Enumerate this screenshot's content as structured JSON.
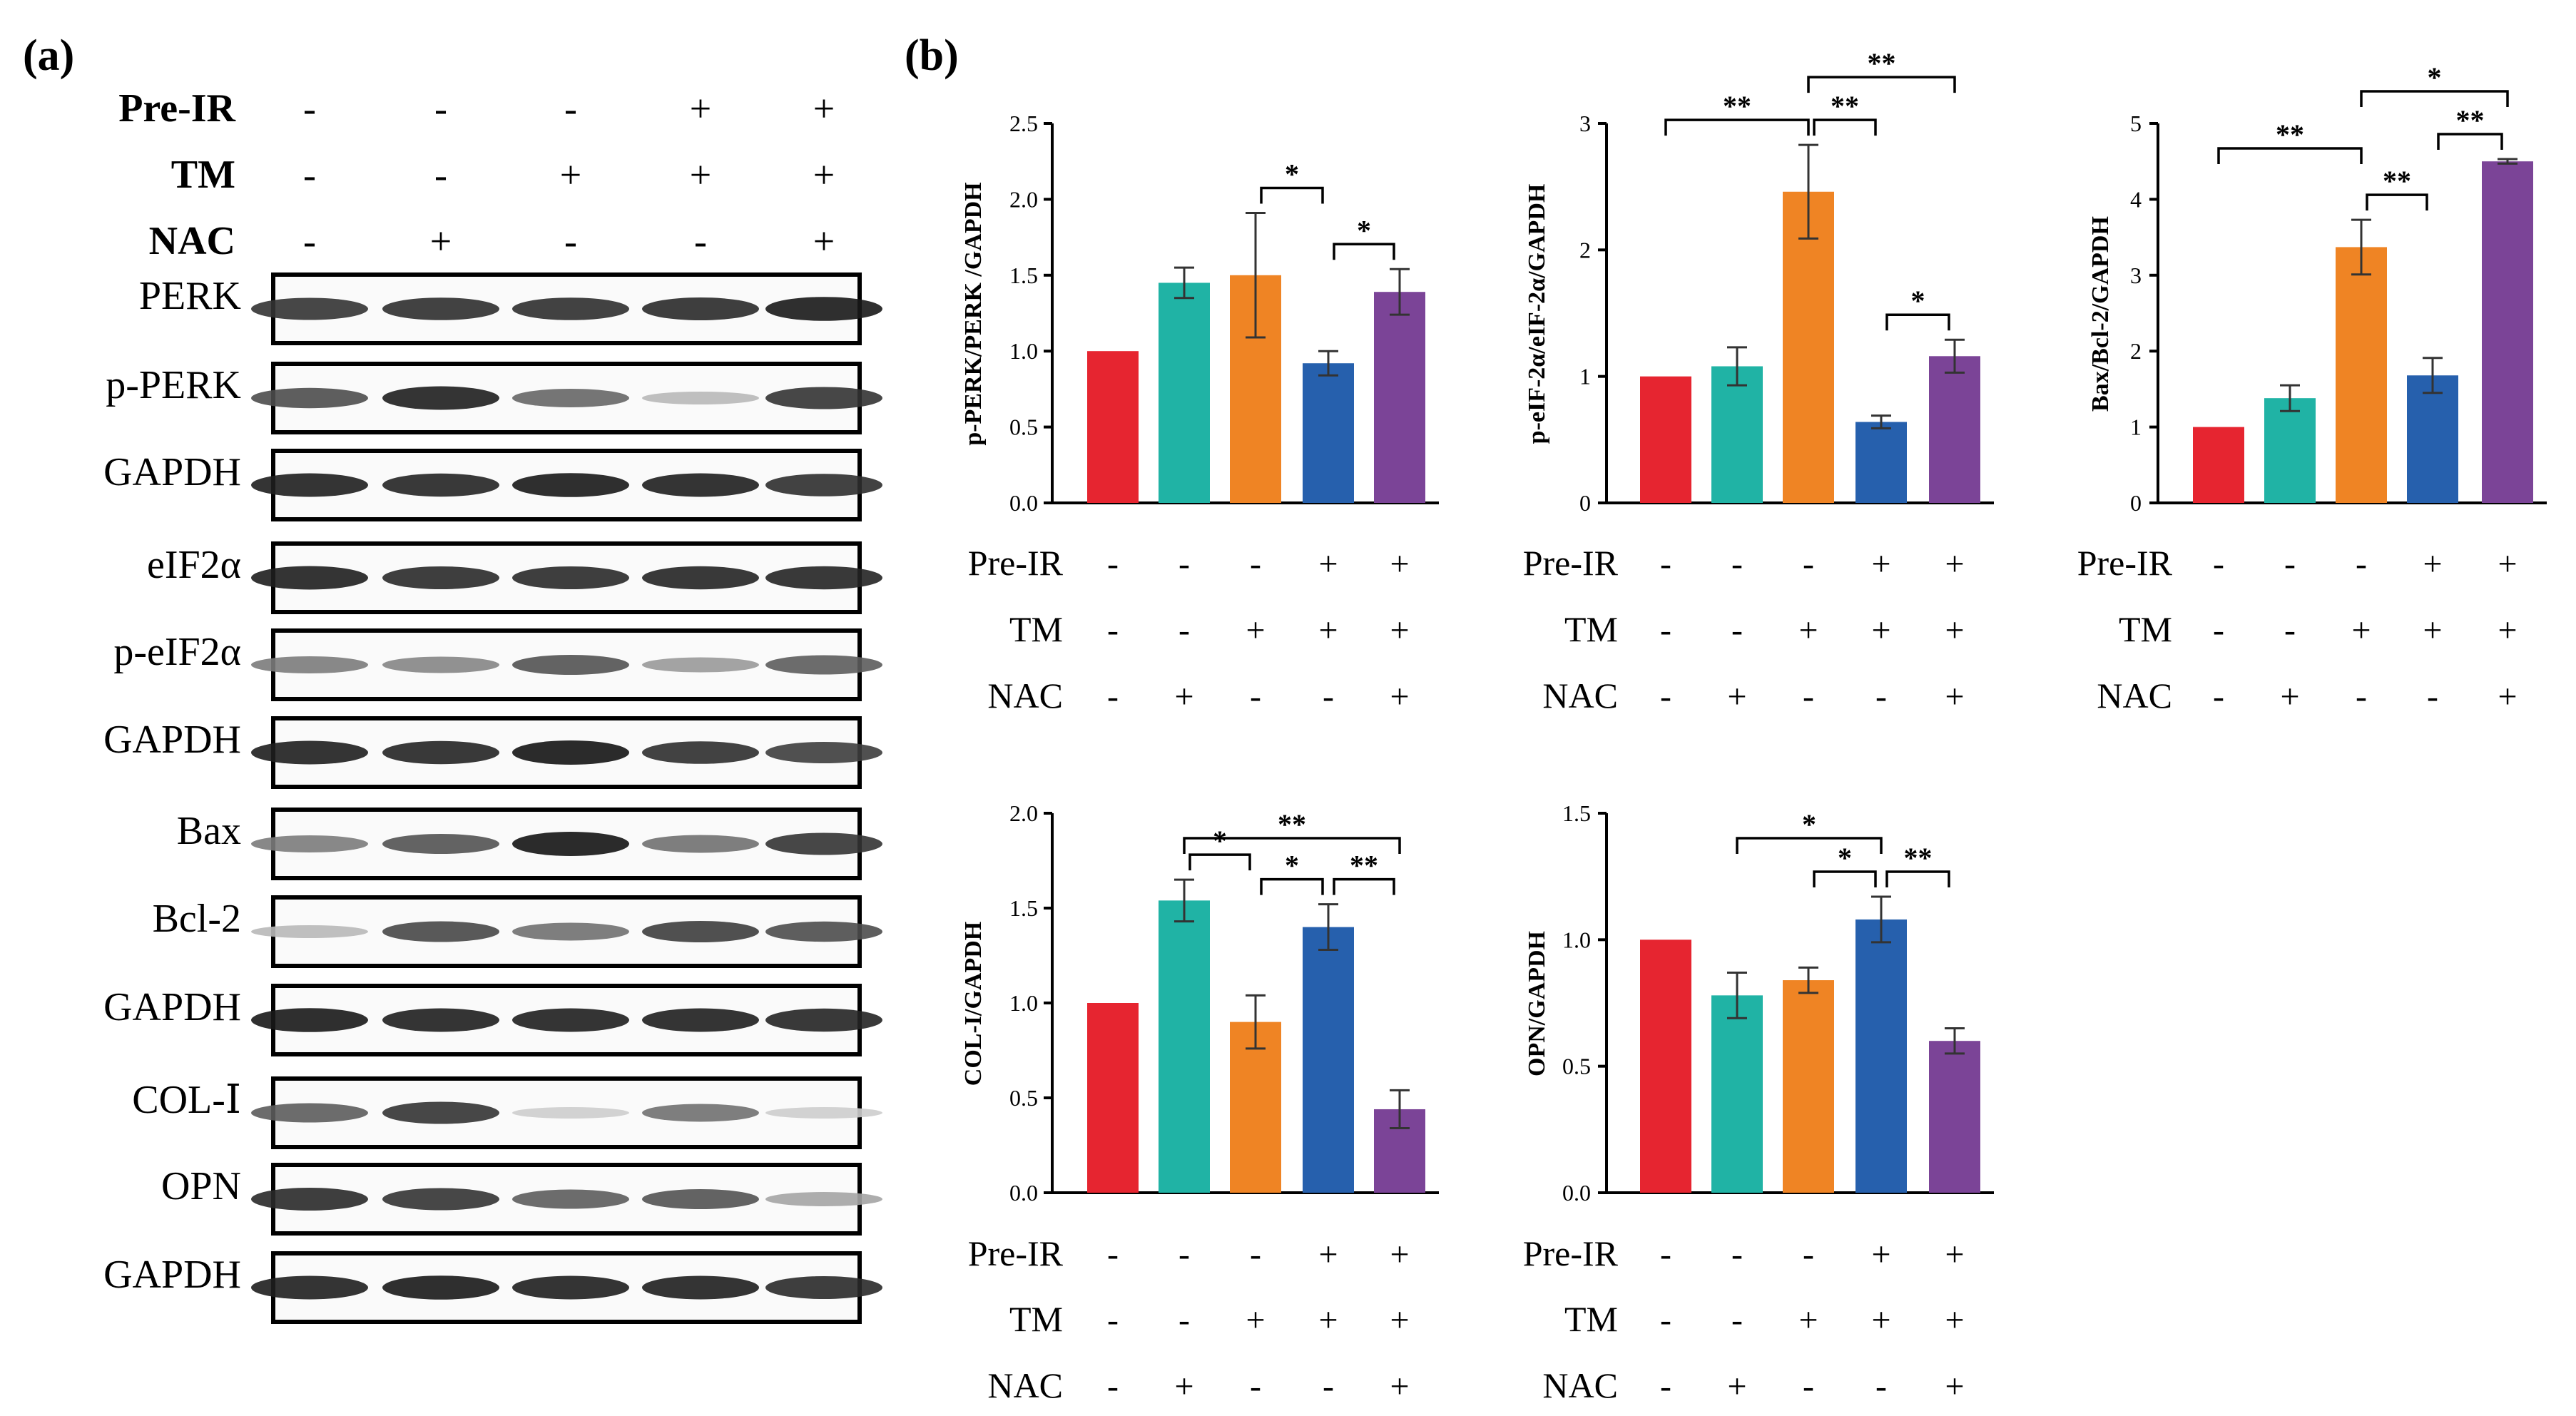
{
  "figure": {
    "panel_a_label": "(a)",
    "panel_b_label": "(b)",
    "conditions": {
      "rows": [
        {
          "label": "Pre-IR",
          "signs": [
            "-",
            "-",
            "-",
            "+",
            "+"
          ]
        },
        {
          "label": "TM",
          "signs": [
            "-",
            "-",
            "+",
            "+",
            "+"
          ]
        },
        {
          "label": "NAC",
          "signs": [
            "-",
            "+",
            "-",
            "-",
            "+"
          ]
        }
      ]
    }
  },
  "colors": {
    "bars": [
      "#e62530",
      "#20b3a5",
      "#ef8424",
      "#2660ad",
      "#7b4497"
    ]
  },
  "blot": {
    "groups": [
      {
        "bands": [
          "PERK",
          "p-PERK",
          "GAPDH"
        ]
      },
      {
        "bands": [
          "eIF2α",
          "p-eIF2α",
          "GAPDH"
        ]
      },
      {
        "bands": [
          "Bax",
          "Bcl-2",
          "GAPDH"
        ]
      },
      {
        "bands": [
          "COL-Ⅰ",
          "OPN",
          "GAPDH"
        ]
      }
    ],
    "intensity": [
      [
        0.85,
        0.88,
        0.88,
        0.9,
        0.98
      ],
      [
        0.72,
        0.95,
        0.6,
        0.2,
        0.85
      ],
      [
        0.95,
        0.92,
        0.98,
        0.95,
        0.88
      ],
      [
        0.95,
        0.9,
        0.9,
        0.92,
        0.92
      ],
      [
        0.5,
        0.45,
        0.7,
        0.35,
        0.65
      ],
      [
        0.95,
        0.92,
        1.0,
        0.88,
        0.8
      ],
      [
        0.5,
        0.7,
        1.0,
        0.55,
        0.85
      ],
      [
        0.2,
        0.75,
        0.55,
        0.8,
        0.72
      ],
      [
        0.98,
        0.95,
        0.95,
        0.95,
        0.92
      ],
      [
        0.65,
        0.85,
        0.1,
        0.55,
        0.1
      ],
      [
        0.9,
        0.85,
        0.65,
        0.7,
        0.3
      ],
      [
        0.95,
        0.98,
        0.95,
        0.95,
        0.9
      ]
    ]
  },
  "chart_data": [
    {
      "type": "bar",
      "ylabel": "p-PERK/PERK /GAPDH",
      "ylim": [
        0,
        2.5
      ],
      "yticks": [
        "0.0",
        "0.5",
        "1.0",
        "1.5",
        "2.0",
        "2.5"
      ],
      "values": [
        1.0,
        1.45,
        1.5,
        0.92,
        1.39
      ],
      "errors": [
        0,
        0.1,
        0.41,
        0.08,
        0.15
      ],
      "significance": [
        {
          "from": 3,
          "to": 4,
          "label": "*"
        },
        {
          "from": 4,
          "to": 5,
          "label": "*"
        }
      ]
    },
    {
      "type": "bar",
      "ylabel": "p-eIF-2α/eIF-2α/GAPDH",
      "ylim": [
        0,
        3
      ],
      "yticks": [
        "0",
        "1",
        "2",
        "3"
      ],
      "values": [
        1.0,
        1.08,
        2.46,
        0.64,
        1.16
      ],
      "errors": [
        0,
        0.15,
        0.37,
        0.05,
        0.13
      ],
      "significance": [
        {
          "from": 1,
          "to": 3,
          "label": "**"
        },
        {
          "from": 3,
          "to": 4,
          "label": "**"
        },
        {
          "from": 4,
          "to": 5,
          "label": "*"
        },
        {
          "from": 3,
          "to": 5,
          "label": "**"
        }
      ]
    },
    {
      "type": "bar",
      "ylabel": "Bax/Bcl-2/GAPDH",
      "ylim": [
        0,
        5
      ],
      "yticks": [
        "0",
        "1",
        "2",
        "3",
        "4",
        "5"
      ],
      "values": [
        1.0,
        1.38,
        3.37,
        1.68,
        4.5
      ],
      "errors": [
        0,
        0.17,
        0.36,
        0.23,
        0.03
      ],
      "significance": [
        {
          "from": 1,
          "to": 3,
          "label": "**"
        },
        {
          "from": 3,
          "to": 4,
          "label": "**"
        },
        {
          "from": 4,
          "to": 5,
          "label": "**"
        },
        {
          "from": 3,
          "to": 5,
          "label": "*"
        }
      ]
    },
    {
      "type": "bar",
      "ylabel": "COL-I/GAPDH",
      "ylim": [
        0,
        2.0
      ],
      "yticks": [
        "0.0",
        "0.5",
        "1.0",
        "1.5",
        "2.0"
      ],
      "values": [
        1.0,
        1.54,
        0.9,
        1.4,
        0.44
      ],
      "errors": [
        0,
        0.11,
        0.14,
        0.12,
        0.1
      ],
      "significance": [
        {
          "from": 2,
          "to": 3,
          "label": "*"
        },
        {
          "from": 3,
          "to": 4,
          "label": "*"
        },
        {
          "from": 4,
          "to": 5,
          "label": "**"
        },
        {
          "from": 2,
          "to": 5,
          "label": "**"
        }
      ]
    },
    {
      "type": "bar",
      "ylabel": "OPN/GAPDH",
      "ylim": [
        0,
        1.5
      ],
      "yticks": [
        "0.0",
        "0.5",
        "1.0",
        "1.5"
      ],
      "values": [
        1.0,
        0.78,
        0.84,
        1.08,
        0.6
      ],
      "errors": [
        0,
        0.09,
        0.05,
        0.09,
        0.05
      ],
      "significance": [
        {
          "from": 3,
          "to": 4,
          "label": "*"
        },
        {
          "from": 4,
          "to": 5,
          "label": "**"
        },
        {
          "from": 2,
          "to": 4,
          "label": "*"
        }
      ]
    }
  ]
}
